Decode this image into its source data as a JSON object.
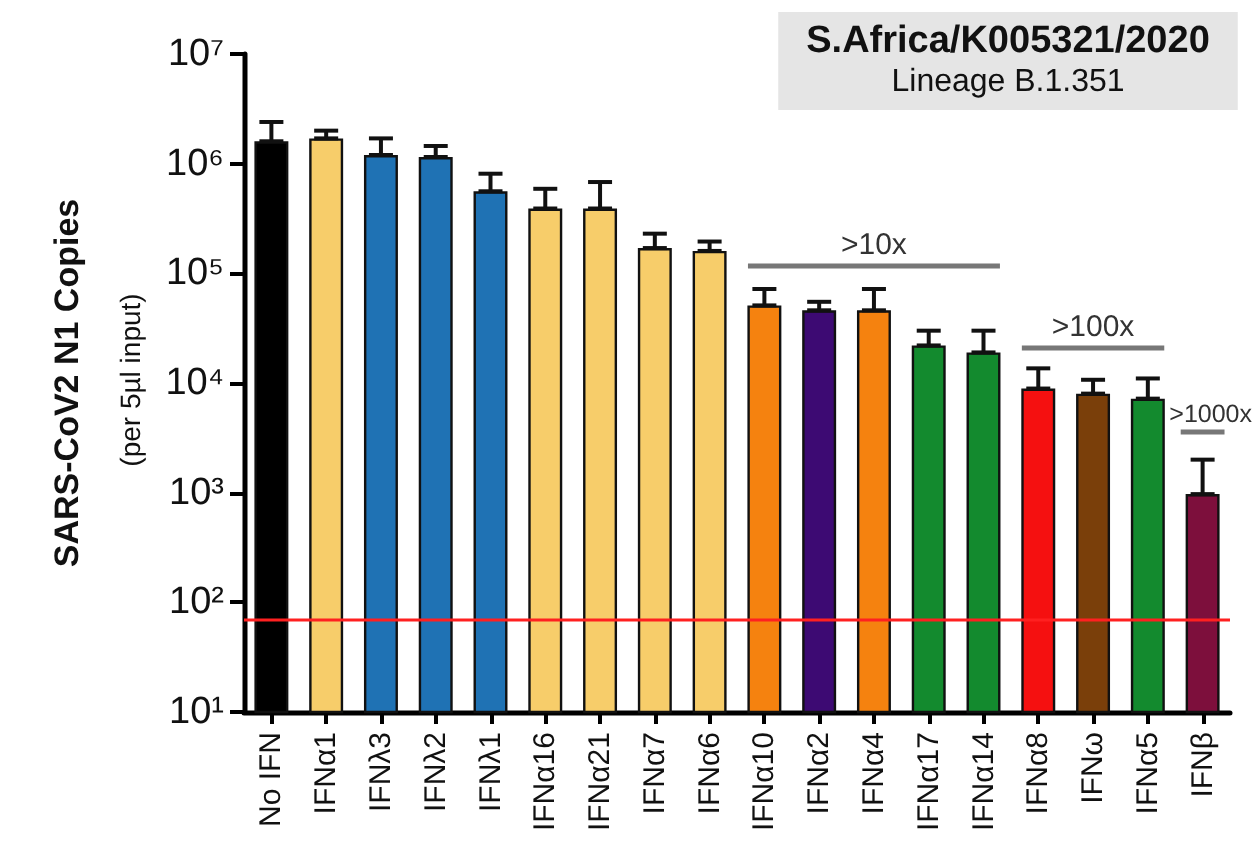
{
  "chart_data": {
    "type": "bar",
    "title": "S.Africa/K005321/2020",
    "subtitle": "Lineage B.1.351",
    "ylabel": "SARS-CoV2 N1 Copies",
    "categories": [
      "No IFN",
      "IFNα1",
      "IFNλ3",
      "IFNλ2",
      "IFNλ1",
      "IFNα16",
      "IFNα21",
      "IFNα7",
      "IFNα6",
      "IFNα10",
      "IFNα2",
      "IFNα4",
      "IFNα17",
      "IFNα14",
      "IFNα8",
      "IFNω",
      "IFNα5",
      "IFNβ"
    ],
    "values": [
      1600000,
      1700000,
      1200000,
      1150000,
      560000,
      390000,
      390000,
      170000,
      160000,
      51000,
      46000,
      46000,
      22000,
      19000,
      8900,
      8000,
      7200,
      970
    ],
    "errors": [
      [
        1600000,
        2400000
      ],
      [
        1700000,
        2000000
      ],
      [
        1200000,
        1700000
      ],
      [
        1150000,
        1450000
      ],
      [
        560000,
        810000
      ],
      [
        390000,
        590000
      ],
      [
        390000,
        680000
      ],
      [
        170000,
        230000
      ],
      [
        160000,
        195000
      ],
      [
        51000,
        72000
      ],
      [
        46000,
        55000
      ],
      [
        46000,
        72000
      ],
      [
        22000,
        30000
      ],
      [
        19000,
        30000
      ],
      [
        8900,
        13600
      ],
      [
        8000,
        10700
      ],
      [
        7200,
        11000
      ],
      [
        970,
        2000
      ]
    ],
    "colors": [
      "#000000",
      "#f7cd6a",
      "#1f72b4",
      "#1f72b4",
      "#1f72b4",
      "#f7cd6a",
      "#f7cd6a",
      "#f7cd6a",
      "#f7cd6a",
      "#f5820f",
      "#3d0a73",
      "#f5820f",
      "#138a2e",
      "#138a2e",
      "#f51010",
      "#7a3f0a",
      "#138a2e",
      "#7d0f3c"
    ],
    "log": "y",
    "ylim": [
      10,
      10000000
    ],
    "yticks": [
      {
        "value": 10,
        "label": "10¹"
      },
      {
        "value": 100,
        "label": "10²"
      },
      {
        "value": 1000,
        "label": "10³"
      },
      {
        "value": 10000,
        "label": "10⁴"
      },
      {
        "value": 100000,
        "label": "10⁵"
      },
      {
        "value": 1000000,
        "label": "10⁶"
      },
      {
        "value": 10000000,
        "label": "10⁷"
      }
    ],
    "ref_lines": [
      {
        "axis": "y",
        "value": 70,
        "color": "#ff2020"
      }
    ],
    "annotations": [
      "(per 5µl input)",
      ">10x",
      ">100x",
      ">1000x"
    ],
    "grid": false
  }
}
